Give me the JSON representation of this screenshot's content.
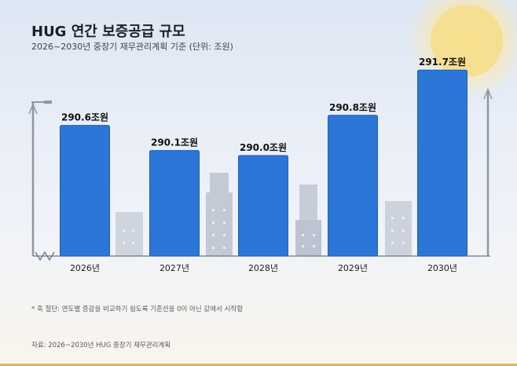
{
  "header": {
    "title": "HUG 연간 보증공급 규모",
    "subtitle": "2026~2030년 중장기 재무관리계획 기준 (단위: 조원)"
  },
  "notes": {
    "footnote": "* 축 절단: 연도별 증감을 비교하기 쉽도록 기준선을 0이 아닌 값에서 시작함",
    "source": "자료: 2026~2030년 HUG 중장기 재무관리계획"
  },
  "colors": {
    "bar": "#2b76d6",
    "bar_edge": "#1c5fb8",
    "accent": "#e0b85a"
  },
  "chart_data": {
    "type": "bar",
    "categories": [
      "2026년",
      "2027년",
      "2028년",
      "2029년",
      "2030년"
    ],
    "values": [
      290.6,
      290.1,
      290.0,
      290.8,
      291.7
    ],
    "value_labels": [
      "290.6조원",
      "290.1조원",
      "290.0조원",
      "290.8조원",
      "291.7조원"
    ],
    "title": "HUG 연간 보증공급 규모",
    "unit": "조원",
    "ylim": [
      288.0,
      292.0
    ],
    "axis_break": true,
    "grid": false,
    "legend": "none"
  }
}
